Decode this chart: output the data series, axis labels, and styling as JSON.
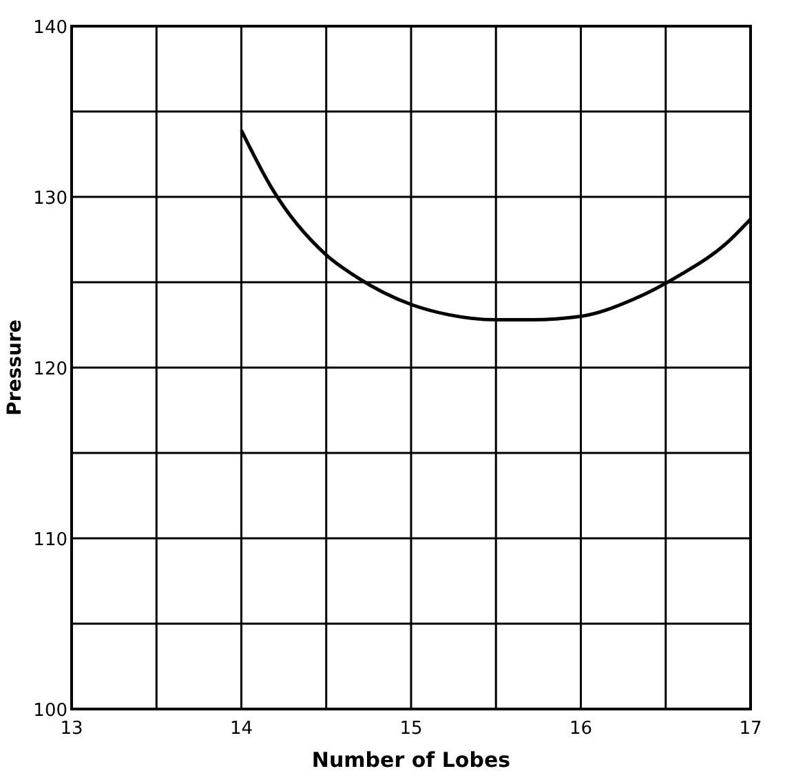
{
  "chart_data": {
    "type": "line",
    "xlabel": "Number of Lobes",
    "ylabel": "Pressure",
    "x": [
      14,
      14.18,
      14.5,
      14.68,
      15,
      15.22,
      15.5,
      15.71,
      16,
      16.31,
      16.58,
      16.86,
      17
    ],
    "series": [
      {
        "color": "#000000",
        "values": [
          133.9,
          130.5,
          126.6,
          125.3,
          123.7,
          123.1,
          122.8,
          122.8,
          123,
          124,
          125.4,
          127.3,
          128.7
        ]
      }
    ],
    "xlim": [
      13,
      17
    ],
    "ylim": [
      100,
      140
    ],
    "xticks": [
      13,
      {
        "value": 13.5,
        "label": null
      },
      14,
      {
        "value": 14.5,
        "label": null
      },
      15,
      {
        "value": 15.5,
        "label": null
      },
      16,
      {
        "value": 16.5,
        "label": null
      },
      17
    ],
    "yticks": [
      100,
      {
        "value": 105,
        "label": null
      },
      110,
      {
        "value": 115,
        "label": null
      },
      120,
      {
        "value": 125,
        "label": null
      },
      130,
      {
        "value": 135,
        "label": null
      },
      140
    ],
    "grid": true,
    "marker": "none",
    "line_style": "solid"
  }
}
